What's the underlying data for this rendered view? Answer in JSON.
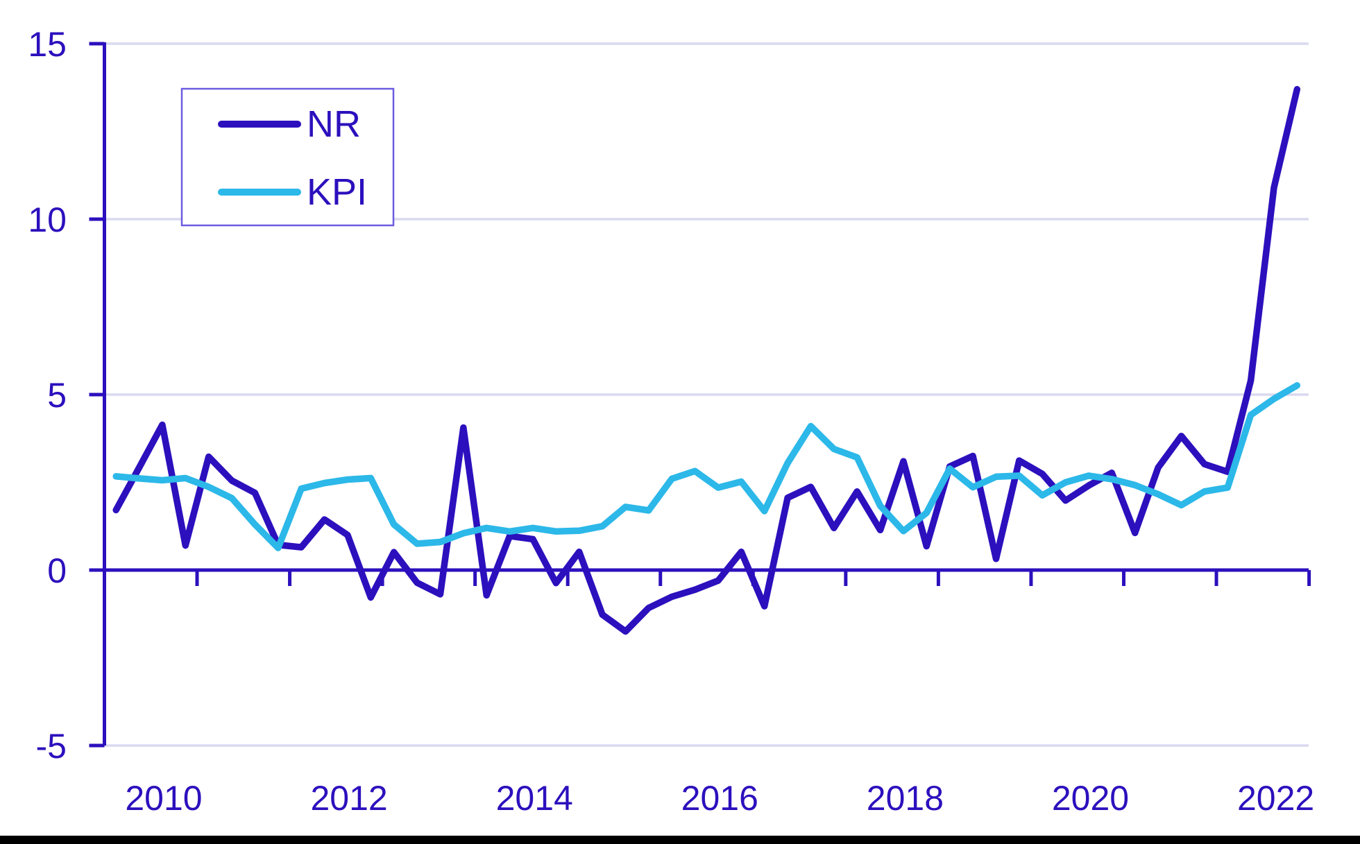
{
  "colors": {
    "axis": "#2c10bd",
    "gridline": "#d9d9f0",
    "legend_border": "#6b5ce0",
    "background": "#ffffff",
    "bottom_bar": "#000000"
  },
  "chart_data": {
    "type": "line",
    "title": "",
    "xlabel": "",
    "ylabel": "",
    "frequency": "quarterly",
    "x_start": "2009 Q3",
    "x_end": "2022 Q2",
    "ylim": [
      -5,
      15
    ],
    "grid": "horizontal",
    "legend_position": "top-left",
    "y_tick_values": [
      15,
      10,
      5,
      0,
      -5
    ],
    "y_tick_labels": [
      "15",
      "10",
      "5",
      "0",
      "-5"
    ],
    "x_tick_labels": [
      "2010",
      "2012",
      "2014",
      "2016",
      "2018",
      "2020",
      "2022"
    ],
    "x_tick_label_years": [
      2010,
      2012,
      2014,
      2016,
      2018,
      2020,
      2022
    ],
    "series": [
      {
        "name": "NR",
        "color": "#2c10bd",
        "values": [
          1.71,
          2.92,
          4.14,
          0.7,
          3.23,
          2.55,
          2.2,
          0.72,
          0.65,
          1.44,
          1.0,
          -0.78,
          0.51,
          -0.36,
          -0.69,
          4.06,
          -0.72,
          0.97,
          0.88,
          -0.37,
          0.52,
          -1.27,
          -1.75,
          -1.08,
          -0.76,
          -0.56,
          -0.3,
          0.52,
          -1.03,
          2.06,
          2.37,
          1.2,
          2.24,
          1.14,
          3.1,
          0.68,
          2.95,
          3.25,
          0.32,
          3.12,
          2.74,
          1.98,
          2.41,
          2.77,
          1.06,
          2.92,
          3.82,
          3.02,
          2.8,
          5.4,
          10.9,
          13.7
        ]
      },
      {
        "name": "KPI",
        "color": "#2cb8e8",
        "values": [
          2.67,
          2.61,
          2.56,
          2.62,
          2.37,
          2.05,
          1.3,
          0.63,
          2.32,
          2.48,
          2.58,
          2.62,
          1.3,
          0.75,
          0.8,
          1.05,
          1.2,
          1.1,
          1.2,
          1.1,
          1.12,
          1.25,
          1.8,
          1.7,
          2.6,
          2.82,
          2.35,
          2.52,
          1.68,
          3.05,
          4.1,
          3.45,
          3.21,
          1.83,
          1.11,
          1.63,
          2.89,
          2.36,
          2.66,
          2.69,
          2.13,
          2.5,
          2.69,
          2.59,
          2.42,
          2.16,
          1.85,
          2.24,
          2.35,
          4.42,
          4.88,
          5.26
        ]
      }
    ]
  }
}
